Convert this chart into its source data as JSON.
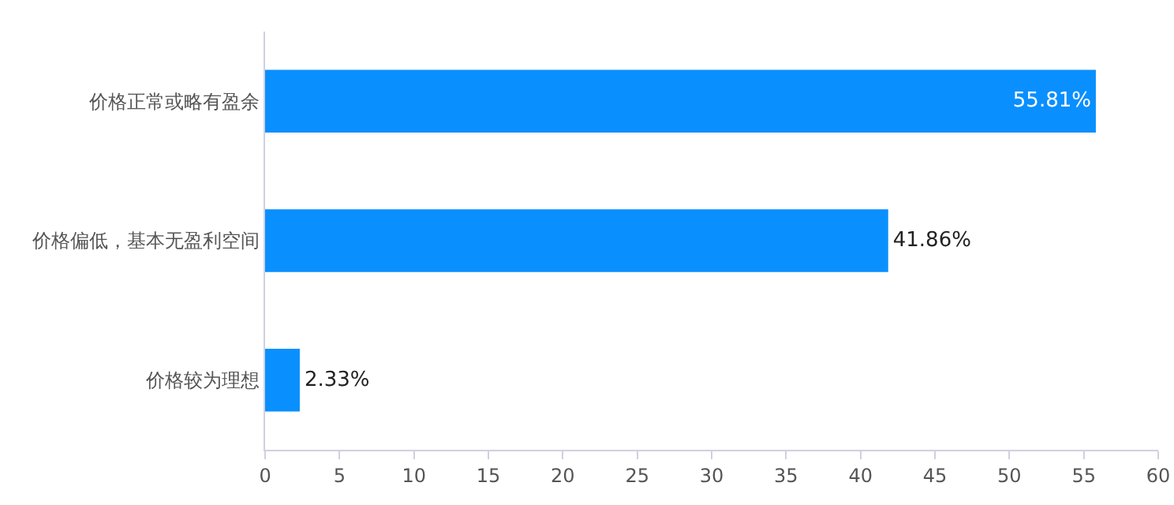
{
  "chart_data": {
    "type": "bar",
    "orientation": "horizontal",
    "categories": [
      "价格正常或略有盈余",
      "价格偏低，基本无盈利空间",
      "价格较为理想"
    ],
    "values": [
      55.81,
      41.86,
      2.33
    ],
    "value_labels": [
      "55.81%",
      "41.86%",
      "2.33%"
    ],
    "color": "#0a8ffe",
    "xlim": [
      0,
      60
    ],
    "xticks": [
      0,
      5,
      10,
      15,
      20,
      25,
      30,
      35,
      40,
      45,
      50,
      55,
      60
    ],
    "grid": false,
    "legend": false
  }
}
